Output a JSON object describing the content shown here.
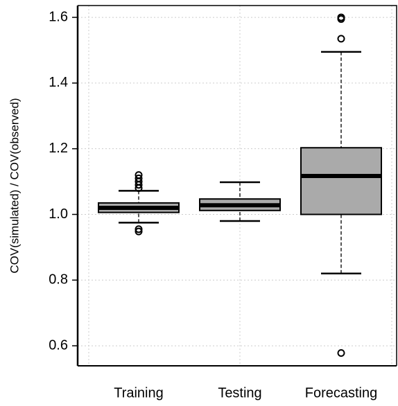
{
  "chart_data": {
    "type": "boxplot",
    "ylabel": "COV(simulated) / COV(observed)",
    "categories": [
      "Training",
      "Testing",
      "Forecasting"
    ],
    "boxes": [
      {
        "whislo": 0.975,
        "q1": 1.006,
        "med": 1.02,
        "q3": 1.035,
        "whishi": 1.072,
        "outliers": [
          0.948,
          0.955,
          1.08,
          1.09,
          1.1,
          1.11,
          1.12
        ]
      },
      {
        "whislo": 0.98,
        "q1": 1.012,
        "med": 1.028,
        "q3": 1.047,
        "whishi": 1.098,
        "outliers": []
      },
      {
        "whislo": 0.82,
        "q1": 1.0,
        "med": 1.117,
        "q3": 1.203,
        "whishi": 1.495,
        "outliers": [
          0.578,
          1.535,
          1.595,
          1.6
        ]
      }
    ],
    "color": "#aaaaaa",
    "ylim": [
      0.539,
      1.636
    ],
    "yticks": [
      0.6,
      0.8,
      {
        "value": 1,
        "label": "1.0"
      },
      1.2,
      1.4,
      1.6
    ],
    "grid": true
  }
}
